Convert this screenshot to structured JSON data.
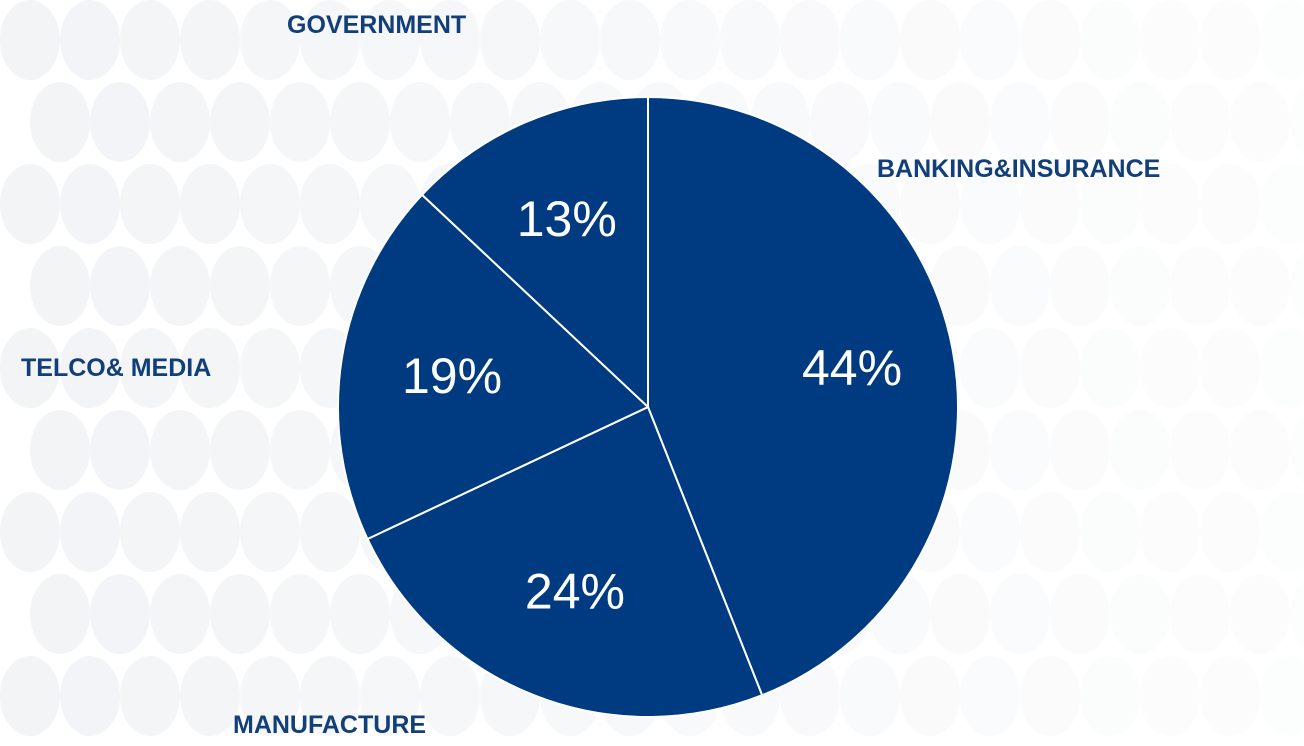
{
  "colors": {
    "slice_fill": "#003a80",
    "slice_stroke": "#ffffff",
    "label_color": "#123f7a",
    "value_label_color": "#ffffff",
    "pattern_color": "#e8ebef"
  },
  "chart_data": {
    "type": "pie",
    "categories": [
      "BANKING&INSURANCE",
      "MANUFACTURE",
      "TELCO& MEDIA",
      "GOVERNMENT"
    ],
    "values": [
      44,
      24,
      19,
      13
    ],
    "value_labels": [
      "44%",
      "24%",
      "19%",
      "13%"
    ],
    "start_angle_deg": 0,
    "direction": "clockwise"
  }
}
